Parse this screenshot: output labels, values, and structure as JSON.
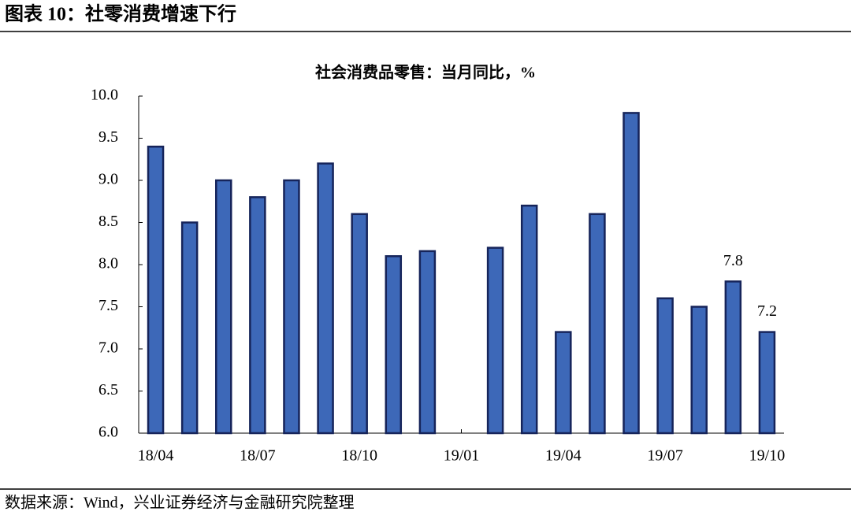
{
  "header": {
    "title": "图表 10：社零消费增速下行"
  },
  "footer": {
    "source": "数据来源：Wind，兴业证券经济与金融研究院整理"
  },
  "chart_data": {
    "type": "bar",
    "title": "社会消费品零售：当月同比，%",
    "categories": [
      "18/04",
      null,
      null,
      "18/07",
      null,
      null,
      "18/10",
      null,
      null,
      "19/01",
      null,
      null,
      "19/04",
      null,
      null,
      "19/07",
      null,
      null,
      "19/10"
    ],
    "values": [
      9.4,
      8.5,
      9.0,
      8.8,
      9.0,
      9.2,
      8.6,
      8.1,
      8.16,
      null,
      8.2,
      8.7,
      7.2,
      8.6,
      9.8,
      7.6,
      7.5,
      7.8,
      7.2
    ],
    "value_labels": [
      null,
      null,
      null,
      null,
      null,
      null,
      null,
      null,
      null,
      null,
      null,
      null,
      null,
      null,
      null,
      null,
      null,
      "7.8",
      "7.2"
    ],
    "color": "#3d68b8",
    "ylim": [
      6,
      10
    ],
    "yticks": [
      {
        "value": 6,
        "label": "6.0"
      },
      6.5,
      {
        "value": 7,
        "label": "7.0"
      },
      7.5,
      {
        "value": 8,
        "label": "8.0"
      },
      8.5,
      {
        "value": 9,
        "label": "9.0"
      },
      9.5,
      {
        "value": 10,
        "label": "10.0"
      }
    ],
    "grid": false
  }
}
